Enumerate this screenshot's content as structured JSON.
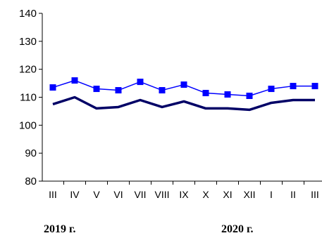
{
  "chart_data": {
    "type": "line",
    "categories": [
      "III",
      "IV",
      "V",
      "VI",
      "VII",
      "VIII",
      "IX",
      "X",
      "XI",
      "XII",
      "I",
      "II",
      "III"
    ],
    "series": [
      {
        "values": [
          113.5,
          116.0,
          113.0,
          112.5,
          115.5,
          112.5,
          114.5,
          111.5,
          111.0,
          110.5,
          113.0,
          114.0,
          114.0
        ],
        "color": "#0000ff",
        "marker": "square"
      },
      {
        "values": [
          107.5,
          110.0,
          106.0,
          106.5,
          109.0,
          106.5,
          108.5,
          106.0,
          106.0,
          105.5,
          108.0,
          109.0,
          109.0
        ],
        "color": "#000066",
        "marker": "none"
      }
    ],
    "ylim": [
      80,
      140
    ],
    "yticks": [
      80,
      90,
      100,
      110,
      120,
      130,
      140
    ],
    "grid": false,
    "year_labels": [
      "2019 г.",
      "2020 г."
    ]
  }
}
